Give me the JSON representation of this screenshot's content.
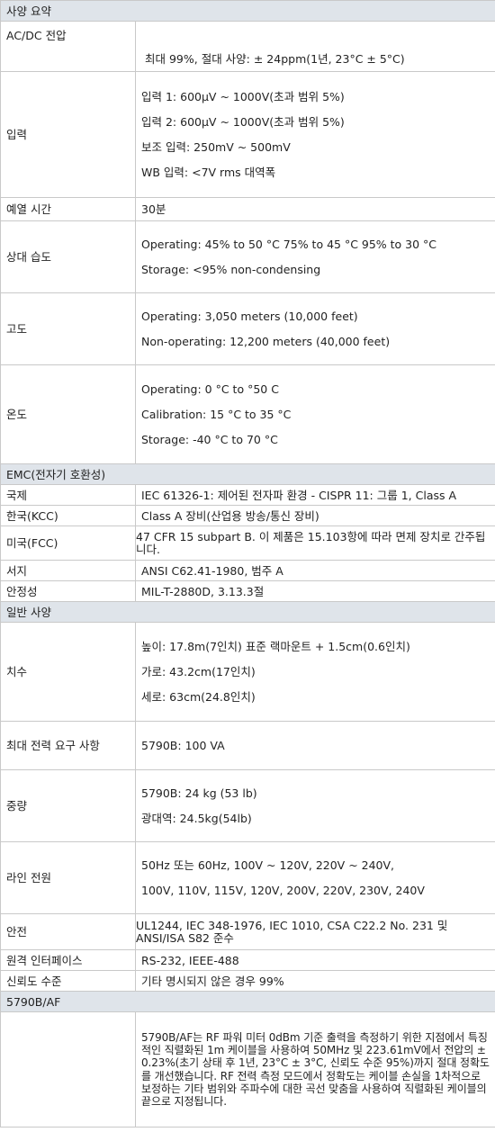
{
  "sections": {
    "summary": "사양 요약",
    "emc": "EMC(전자기 호환성)",
    "general": "일반 사양",
    "af": "5790B/AF"
  },
  "summary_rows": {
    "acdc": {
      "label": "AC/DC 전압",
      "lines": [
        "최대 99%, 절대 사양:   ± 24ppm(1년, 23°C ± 5°C)"
      ]
    },
    "input": {
      "label": "입력",
      "lines": [
        "입력 1: 600μV ~ 1000V(초과 범위 5%)",
        "입력 2: 600μV ~ 1000V(초과 범위 5%)",
        "보조 입력: 250mV ~ 500mV",
        "WB 입력: <7V rms 대역폭"
      ]
    },
    "warmup": {
      "label": "예열 시간",
      "lines": [
        "30분"
      ]
    },
    "humidity": {
      "label": "상대 습도",
      "lines": [
        "Operating: 45% to 50 °C 75% to 45 °C 95% to 30 °C",
        "Storage: <95% non-condensing"
      ]
    },
    "altitude": {
      "label": "고도",
      "lines": [
        "Operating: 3,050 meters (10,000 feet)",
        "Non-operating: 12,200 meters (40,000 feet)"
      ]
    },
    "temperature": {
      "label": "온도",
      "lines": [
        "Operating: 0 °C to °50 C",
        "Calibration: 15 °C to 35 °C",
        "Storage: -40 °C to 70 °C"
      ]
    }
  },
  "emc_rows": {
    "intl": {
      "label": "국제",
      "value": "IEC 61326-1: 제어된 전자파 환경 - CISPR 11: 그룹 1, Class A"
    },
    "kcc": {
      "label": "한국(KCC)",
      "value": "Class A 장비(산업용 방송/통신 장비)"
    },
    "fcc": {
      "label": "미국(FCC)",
      "value": "47 CFR 15 subpart B. 이 제품은 15.103항에 따라 면제 장치로 간주됩니다."
    },
    "surge": {
      "label": "서지",
      "value": "ANSI C62.41-1980, 범주 A"
    },
    "stability": {
      "label": "안정성",
      "value": "MIL-T-2880D, 3.13.3절"
    }
  },
  "general_rows": {
    "dimensions": {
      "label": "치수",
      "lines": [
        "높이: 17.8m(7인치) 표준 랙마운트 + 1.5cm(0.6인치)",
        "가로: 43.2cm(17인치)",
        "세로: 63cm(24.8인치)"
      ]
    },
    "power": {
      "label": "최대 전력 요구 사항",
      "lines": [
        "5790B: 100 VA"
      ]
    },
    "weight": {
      "label": "중량",
      "lines": [
        "5790B: 24 kg (53 lb)",
        "광대역: 24.5kg(54lb)"
      ]
    },
    "line_power": {
      "label": "라인 전원",
      "lines": [
        "50Hz 또는 60Hz, 100V ~ 120V, 220V ~ 240V,",
        "100V, 110V, 115V, 120V, 200V, 220V, 230V, 240V"
      ]
    },
    "safety": {
      "label": "안전",
      "value": "UL1244, IEC 348-1976, IEC 1010, CSA C22.2 No. 231 및 ANSI/ISA S82 준수"
    },
    "remote": {
      "label": "원격 인터페이스",
      "value": "RS-232, IEEE-488"
    },
    "confidence": {
      "label": "신뢰도 수준",
      "value": "기타 명시되지 않은 경우 99%"
    }
  },
  "af_text": "5790B/AF는 RF 파워 미터 0dBm 기준 출력을 측정하기 위한 지점에서 특징적인 직렬화된 1m 케이블을 사용하여 50MHz 및 223.61mV에서 전압의 ± 0.23%(초기 상태 후 1년, 23°C ± 3°C, 신뢰도 수준 95%)까지 절대 정확도를 개선했습니다. RF 전력 측정 모드에서 정확도는 케이블 손실을 1차적으로 보정하는 기타 범위와 주파수에 대한 곡선 맞춤을 사용하여 직렬화된 케이블의 끝으로 지정됩니다."
}
